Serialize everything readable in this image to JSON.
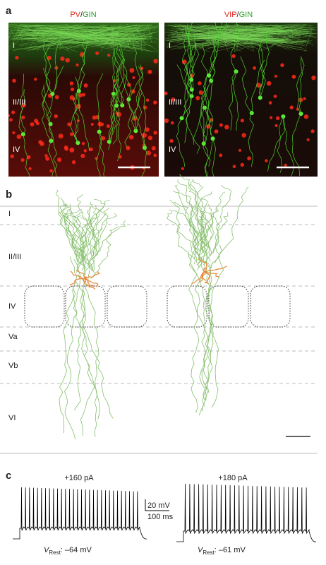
{
  "panel_a": {
    "label": "a",
    "images": [
      {
        "marker": "PV",
        "sep": "/",
        "reporter": "GIN",
        "layers": [
          "I",
          "II/III",
          "IV"
        ]
      },
      {
        "marker": "VIP",
        "sep": "/",
        "reporter": "GIN",
        "layers": [
          "I",
          "II/III",
          "IV"
        ]
      }
    ]
  },
  "panel_b": {
    "label": "b",
    "layers": [
      "I",
      "II/III",
      "IV",
      "Va",
      "Vb",
      "VI"
    ]
  },
  "panel_c": {
    "label": "c",
    "traces": [
      {
        "stimulus": "+160 pA",
        "v_symbol": "V",
        "v_sub": "Rest",
        "v_value": ": –64 mV"
      },
      {
        "stimulus": "+180 pA",
        "v_symbol": "V",
        "v_sub": "Rest",
        "v_value": ": –61 mV"
      }
    ],
    "scale_bar": {
      "voltage": "20 mV",
      "time": "100 ms"
    }
  }
}
